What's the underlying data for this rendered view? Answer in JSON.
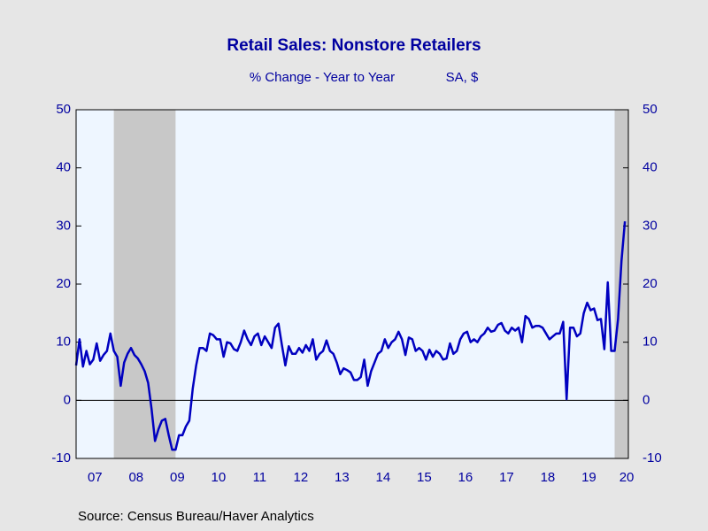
{
  "chart_data": {
    "type": "line",
    "title": "Retail Sales: Nonstore Retailers",
    "subtitle": "% Change - Year to Year",
    "units": "SA, $",
    "source": "Source:  Census Bureau/Haver Analytics",
    "categories": [
      null,
      null,
      null,
      null,
      null,
      null,
      null,
      null,
      null,
      null,
      null,
      null,
      null,
      null,
      null,
      null,
      null,
      null,
      null,
      null,
      null,
      null,
      null,
      null,
      null,
      null,
      null,
      null,
      null,
      null,
      null,
      null,
      null,
      null,
      null,
      null,
      null,
      null,
      null,
      null,
      null,
      null,
      null,
      null,
      null,
      null,
      null,
      null,
      null,
      null,
      null,
      null,
      null,
      null,
      null,
      null,
      null,
      null,
      null,
      null,
      null,
      null,
      null,
      null,
      null,
      null,
      null,
      null,
      null,
      null,
      null,
      null,
      null,
      null,
      null,
      null,
      null,
      null,
      null,
      null,
      null,
      null,
      null,
      null,
      null,
      null,
      null,
      null,
      null,
      null,
      null,
      null,
      null,
      null,
      null,
      null,
      null,
      null,
      null,
      null,
      null,
      null,
      null,
      null,
      null,
      null,
      null,
      null,
      null,
      null,
      null,
      null,
      null,
      null,
      null,
      null,
      null,
      null,
      null,
      null,
      null,
      null,
      null,
      null,
      null,
      null,
      null,
      null,
      null,
      null,
      null,
      null,
      null,
      null,
      null,
      null,
      null,
      null,
      null,
      null,
      null,
      null,
      null,
      null,
      null,
      null,
      null,
      null,
      null,
      null,
      null,
      null,
      null,
      null,
      null,
      null,
      null,
      null,
      null,
      null,
      null
    ],
    "series": [
      {
        "name": "Nonstore Retailers",
        "color": "#0000c0",
        "values": [
          6,
          10.5,
          5.8,
          8.5,
          6.2,
          7,
          9.8,
          6.8,
          7.8,
          8.5,
          11.5,
          8.5,
          7.5,
          2.5,
          6.5,
          8,
          9,
          7.8,
          7.2,
          6.2,
          5,
          3,
          -1.5,
          -7,
          -5,
          -3.5,
          -3.2,
          -6,
          -8.5,
          -8.5,
          -6,
          -6,
          -4.5,
          -3.5,
          2,
          6,
          9,
          9,
          8.5,
          11.5,
          11.2,
          10.5,
          10.5,
          7.5,
          10,
          9.8,
          8.8,
          8.5,
          10,
          12,
          10.5,
          9.5,
          11,
          11.5,
          9.5,
          11,
          10,
          9,
          12.5,
          13.2,
          9.5,
          6,
          9.3,
          8,
          8,
          9,
          8.2,
          9.5,
          8.5,
          10.5,
          7,
          8,
          8.5,
          10.3,
          8.5,
          8,
          6.5,
          4.5,
          5.5,
          5.2,
          4.8,
          3.5,
          3.5,
          4,
          7,
          2.5,
          5,
          6.5,
          8,
          8.5,
          10.5,
          9,
          10,
          10.5,
          11.8,
          10.5,
          7.8,
          10.8,
          10.5,
          8.5,
          9,
          8.5,
          7,
          8.7,
          7.5,
          8.5,
          8,
          7,
          7.2,
          9.8,
          8,
          8.5,
          10.5,
          11.5,
          11.8,
          10,
          10.5,
          10,
          11,
          11.5,
          12.5,
          11.8,
          12,
          13,
          13.3,
          12,
          11.5,
          12.5,
          12,
          12.5,
          10,
          14.5,
          14,
          12.5,
          12.8,
          12.8,
          12.5,
          11.5,
          10.5,
          11,
          11.5,
          11.5,
          13.5,
          0.2,
          12.5,
          12.5,
          11,
          11.5,
          15,
          16.8,
          15.5,
          15.8,
          13.8,
          14,
          8.8,
          20.3,
          8.5,
          8.5,
          14,
          24,
          30.8
        ]
      }
    ],
    "xlim": [
      0,
      161
    ],
    "xticks": [
      {
        "value": 5.5,
        "label": "07"
      },
      {
        "value": 17.5,
        "label": "08"
      },
      {
        "value": 29.5,
        "label": "09"
      },
      {
        "value": 41.5,
        "label": "10"
      },
      {
        "value": 53.5,
        "label": "11"
      },
      {
        "value": 65.5,
        "label": "12"
      },
      {
        "value": 77.5,
        "label": "13"
      },
      {
        "value": 89.5,
        "label": "14"
      },
      {
        "value": 101.5,
        "label": "15"
      },
      {
        "value": 113.5,
        "label": "16"
      },
      {
        "value": 125.5,
        "label": "17"
      },
      {
        "value": 137.5,
        "label": "18"
      },
      {
        "value": 149.5,
        "label": "19"
      },
      {
        "value": 160.5,
        "label": "20"
      }
    ],
    "ylim": [
      -10,
      50
    ],
    "yticks": [
      -10,
      0,
      10,
      20,
      30,
      40,
      50
    ],
    "y2lim": [
      -10,
      50
    ],
    "y2ticks": [
      -10,
      0,
      10,
      20,
      30,
      40,
      50
    ],
    "shading": [
      [
        11,
        29
      ],
      [
        157,
        161
      ]
    ],
    "shading_color": "#c8c8c8",
    "zero_line": true
  }
}
